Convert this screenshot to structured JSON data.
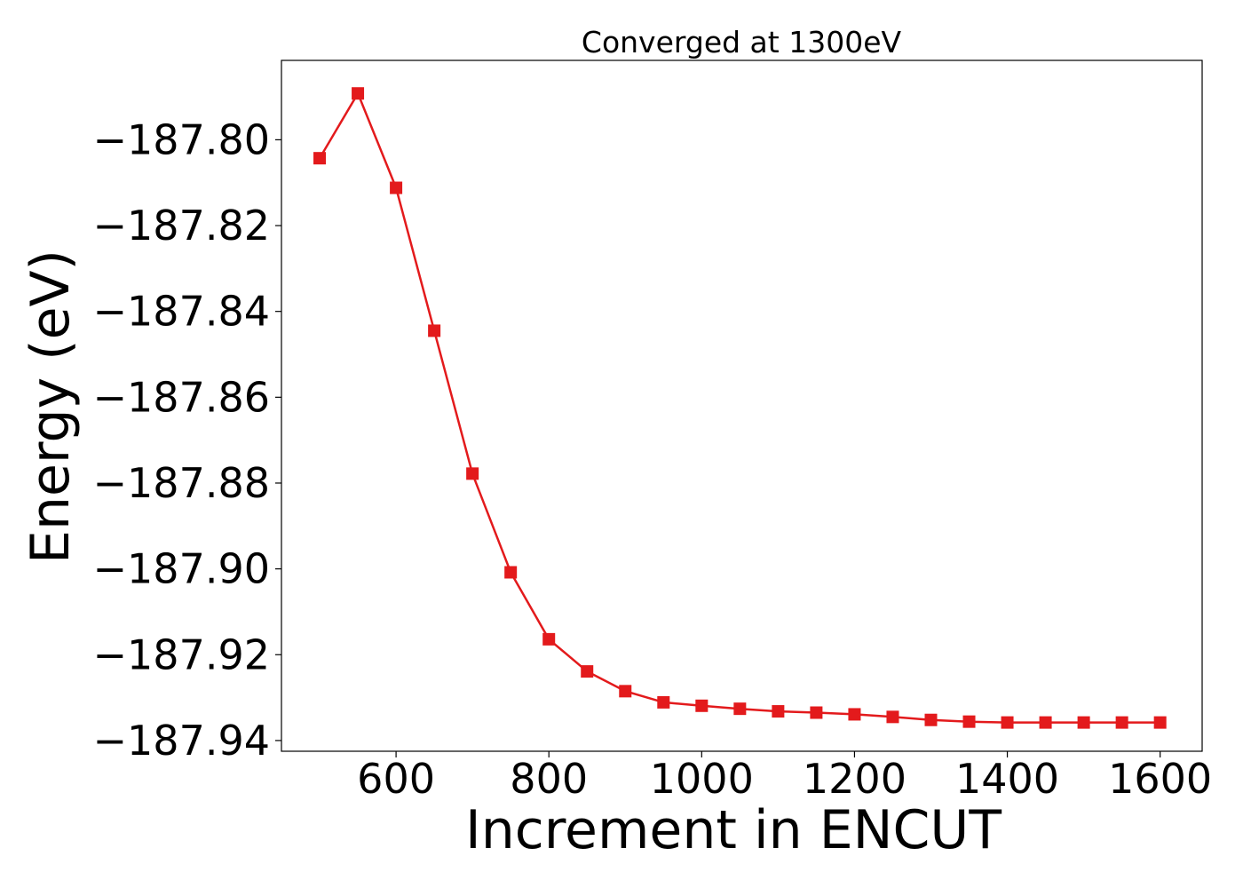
{
  "chart_data": {
    "type": "line",
    "title": "Converged at 1300eV",
    "xlabel": "Increment in ENCUT",
    "ylabel": "Energy (eV)",
    "xlim": [
      450,
      1655
    ],
    "ylim": [
      -187.9425,
      -187.7815
    ],
    "x_ticks": [
      600,
      800,
      1000,
      1200,
      1400,
      1600
    ],
    "x_tick_labels": [
      "600",
      "800",
      "1000",
      "1200",
      "1400",
      "1600"
    ],
    "y_ticks": [
      -187.8,
      -187.82,
      -187.84,
      -187.86,
      -187.88,
      -187.9,
      -187.92,
      -187.94
    ],
    "y_tick_labels": [
      "−187.80",
      "−187.82",
      "−187.84",
      "−187.86",
      "−187.88",
      "−187.90",
      "−187.92",
      "−187.94"
    ],
    "grid": false,
    "series": [
      {
        "color": "#e31a1c",
        "marker": "square",
        "x": [
          500,
          550,
          600,
          650,
          700,
          750,
          800,
          850,
          900,
          950,
          1000,
          1050,
          1100,
          1150,
          1200,
          1250,
          1300,
          1350,
          1400,
          1450,
          1500,
          1550,
          1600
        ],
        "y": [
          -187.8043,
          -187.7892,
          -187.8112,
          -187.8445,
          -187.8778,
          -187.9008,
          -187.9164,
          -187.9239,
          -187.9285,
          -187.9311,
          -187.9319,
          -187.9326,
          -187.9332,
          -187.9335,
          -187.9339,
          -187.9345,
          -187.9352,
          -187.9356,
          -187.9358,
          -187.9358,
          -187.9358,
          -187.9358,
          -187.9358
        ]
      }
    ]
  }
}
